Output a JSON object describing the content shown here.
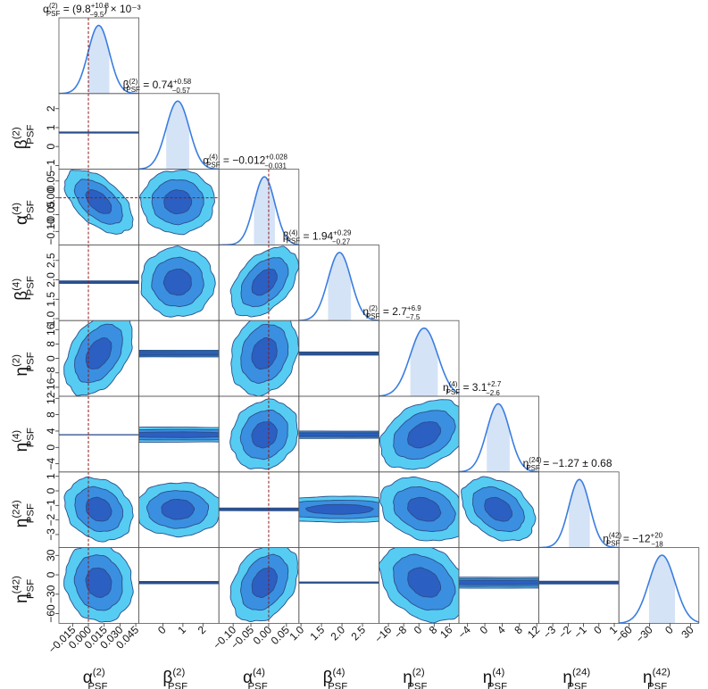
{
  "chart_data": {
    "type": "corner",
    "parameters": [
      {
        "base": "α",
        "sup": "(2)",
        "sub": "PSF",
        "title": {
          "value": "(9.8",
          "plus": "+10.8",
          "minus": "−9.5",
          "suffix": ") × 10⁻³"
        },
        "range": [
          -0.028,
          0.048
        ],
        "ticks": [
          -0.015,
          0.0,
          0.015,
          0.03,
          0.045
        ],
        "tick_labels": [
          "−0.015",
          "0.000",
          "0.015",
          "0.030",
          "0.045"
        ],
        "mean": 0.0098,
        "sigma": 0.0101,
        "truth": 0.0
      },
      {
        "base": "β",
        "sup": "(2)",
        "sub": "PSF",
        "title": {
          "value": "0.74",
          "plus": "+0.58",
          "minus": "−0.57",
          "suffix": ""
        },
        "range": [
          -1.2,
          2.8
        ],
        "ticks": [
          -1,
          0,
          1,
          2
        ],
        "tick_labels": [
          "0",
          "1",
          "2"
        ],
        "ylabels": [
          "−1",
          "0",
          "1",
          "2"
        ],
        "mean": 0.74,
        "sigma": 0.575,
        "truth": null
      },
      {
        "base": "α",
        "sup": "(4)",
        "sub": "PSF",
        "title": {
          "value": "−0.012",
          "plus": "+0.028",
          "minus": "−0.031",
          "suffix": ""
        },
        "range": [
          -0.14,
          0.085
        ],
        "ticks": [
          -0.1,
          -0.05,
          0.0,
          0.05
        ],
        "tick_labels": [
          "−0.10",
          "−0.05",
          "0.00",
          "0.05"
        ],
        "mean": -0.012,
        "sigma": 0.0295,
        "truth": 0.0
      },
      {
        "base": "β",
        "sup": "(4)",
        "sub": "PSF",
        "title": {
          "value": "1.94",
          "plus": "+0.29",
          "minus": "−0.27",
          "suffix": ""
        },
        "range": [
          0.95,
          2.9
        ],
        "ticks": [
          1.0,
          1.5,
          2.0,
          2.5
        ],
        "tick_labels": [
          "1.0",
          "1.5",
          "2.0",
          "2.5"
        ],
        "mean": 1.94,
        "sigma": 0.28,
        "truth": null
      },
      {
        "base": "η",
        "sup": "(2)",
        "sub": "PSF",
        "title": {
          "value": "2.7",
          "plus": "+6.9",
          "minus": "−7.5",
          "suffix": ""
        },
        "range": [
          -21,
          21
        ],
        "ticks": [
          -16,
          -8,
          0,
          8,
          16
        ],
        "tick_labels": [
          "−16",
          "−8",
          "0",
          "8",
          "16"
        ],
        "mean": 2.7,
        "sigma": 7.2,
        "truth": null
      },
      {
        "base": "η",
        "sup": "(4)",
        "sub": "PSF",
        "title": {
          "value": "3.1",
          "plus": "+2.7",
          "minus": "−2.6",
          "suffix": ""
        },
        "range": [
          -6,
          12.5
        ],
        "ticks": [
          -4,
          0,
          4,
          8,
          12
        ],
        "tick_labels": [
          "−4",
          "0",
          "4",
          "8",
          "12"
        ],
        "mean": 3.1,
        "sigma": 2.65,
        "truth": null
      },
      {
        "base": "η",
        "sup": "(24)",
        "sub": "PSF",
        "title": {
          "value": "−1.27 ± 0.68",
          "plus": "",
          "minus": "",
          "suffix": ""
        },
        "range": [
          -3.9,
          1.3
        ],
        "ticks": [
          -3,
          -2,
          -1,
          0,
          1
        ],
        "tick_labels": [
          "−3",
          "−2",
          "−1",
          "0",
          "1"
        ],
        "mean": -1.27,
        "sigma": 0.68,
        "truth": null
      },
      {
        "base": "η",
        "sup": "(42)",
        "sub": "PSF",
        "title": {
          "value": "−12",
          "plus": "+20",
          "minus": "−18",
          "suffix": ""
        },
        "range": [
          -75,
          42
        ],
        "ticks": [
          -60,
          -30,
          0,
          30
        ],
        "tick_labels": [
          "−60",
          "−30",
          "0",
          "30"
        ],
        "mean": -12,
        "sigma": 19,
        "truth": null
      }
    ],
    "correlations": [
      [
        1.0,
        0.0,
        -0.55,
        0.0,
        0.42,
        0.0,
        -0.2,
        -0.1
      ],
      [
        0.0,
        1.0,
        0.0,
        0.0,
        0.0,
        0.0,
        0.0,
        0.0
      ],
      [
        -0.55,
        0.0,
        1.0,
        0.45,
        0.2,
        0.15,
        0.0,
        0.32
      ],
      [
        0.0,
        0.0,
        0.45,
        1.0,
        0.0,
        0.0,
        0.0,
        0.0
      ],
      [
        0.42,
        0.0,
        0.2,
        0.0,
        1.0,
        0.35,
        -0.25,
        -0.3
      ],
      [
        0.0,
        0.0,
        0.15,
        0.0,
        0.35,
        1.0,
        -0.35,
        0.0
      ],
      [
        -0.2,
        0.0,
        0.0,
        0.0,
        -0.25,
        -0.35,
        1.0,
        0.0
      ],
      [
        -0.1,
        0.0,
        0.32,
        0.0,
        -0.3,
        0.0,
        0.0,
        1.0
      ]
    ],
    "contour_sigmas": [
      1,
      2,
      3
    ],
    "colors": {
      "contour_outer": "#56ccf2",
      "contour_mid": "#3b8fe0",
      "contour_inner": "#2b5fc2",
      "contour_edge": "#2a4e8a",
      "histogram_line": "#3a7de0",
      "credible_fill": "#d5e3f7",
      "truth_line": "#8b1a1a",
      "frame": "#555555"
    },
    "grid": false
  }
}
